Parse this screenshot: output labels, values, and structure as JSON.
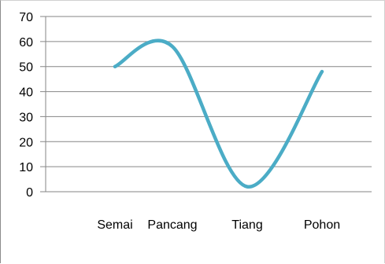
{
  "chart_data": {
    "type": "line",
    "categories": [
      "Semai",
      "Pancang",
      "Tiang",
      "Pohon"
    ],
    "series": [
      {
        "values": [
          50,
          58,
          2,
          48
        ]
      }
    ],
    "title": "",
    "xlabel": "",
    "ylabel": "",
    "ylim": [
      0,
      70
    ],
    "yticks": [
      0,
      10,
      20,
      30,
      40,
      50,
      60,
      70
    ],
    "smooth": true,
    "grid": true,
    "legend": "none",
    "line_color": "#4bacc6",
    "grid_color": "#868686"
  }
}
